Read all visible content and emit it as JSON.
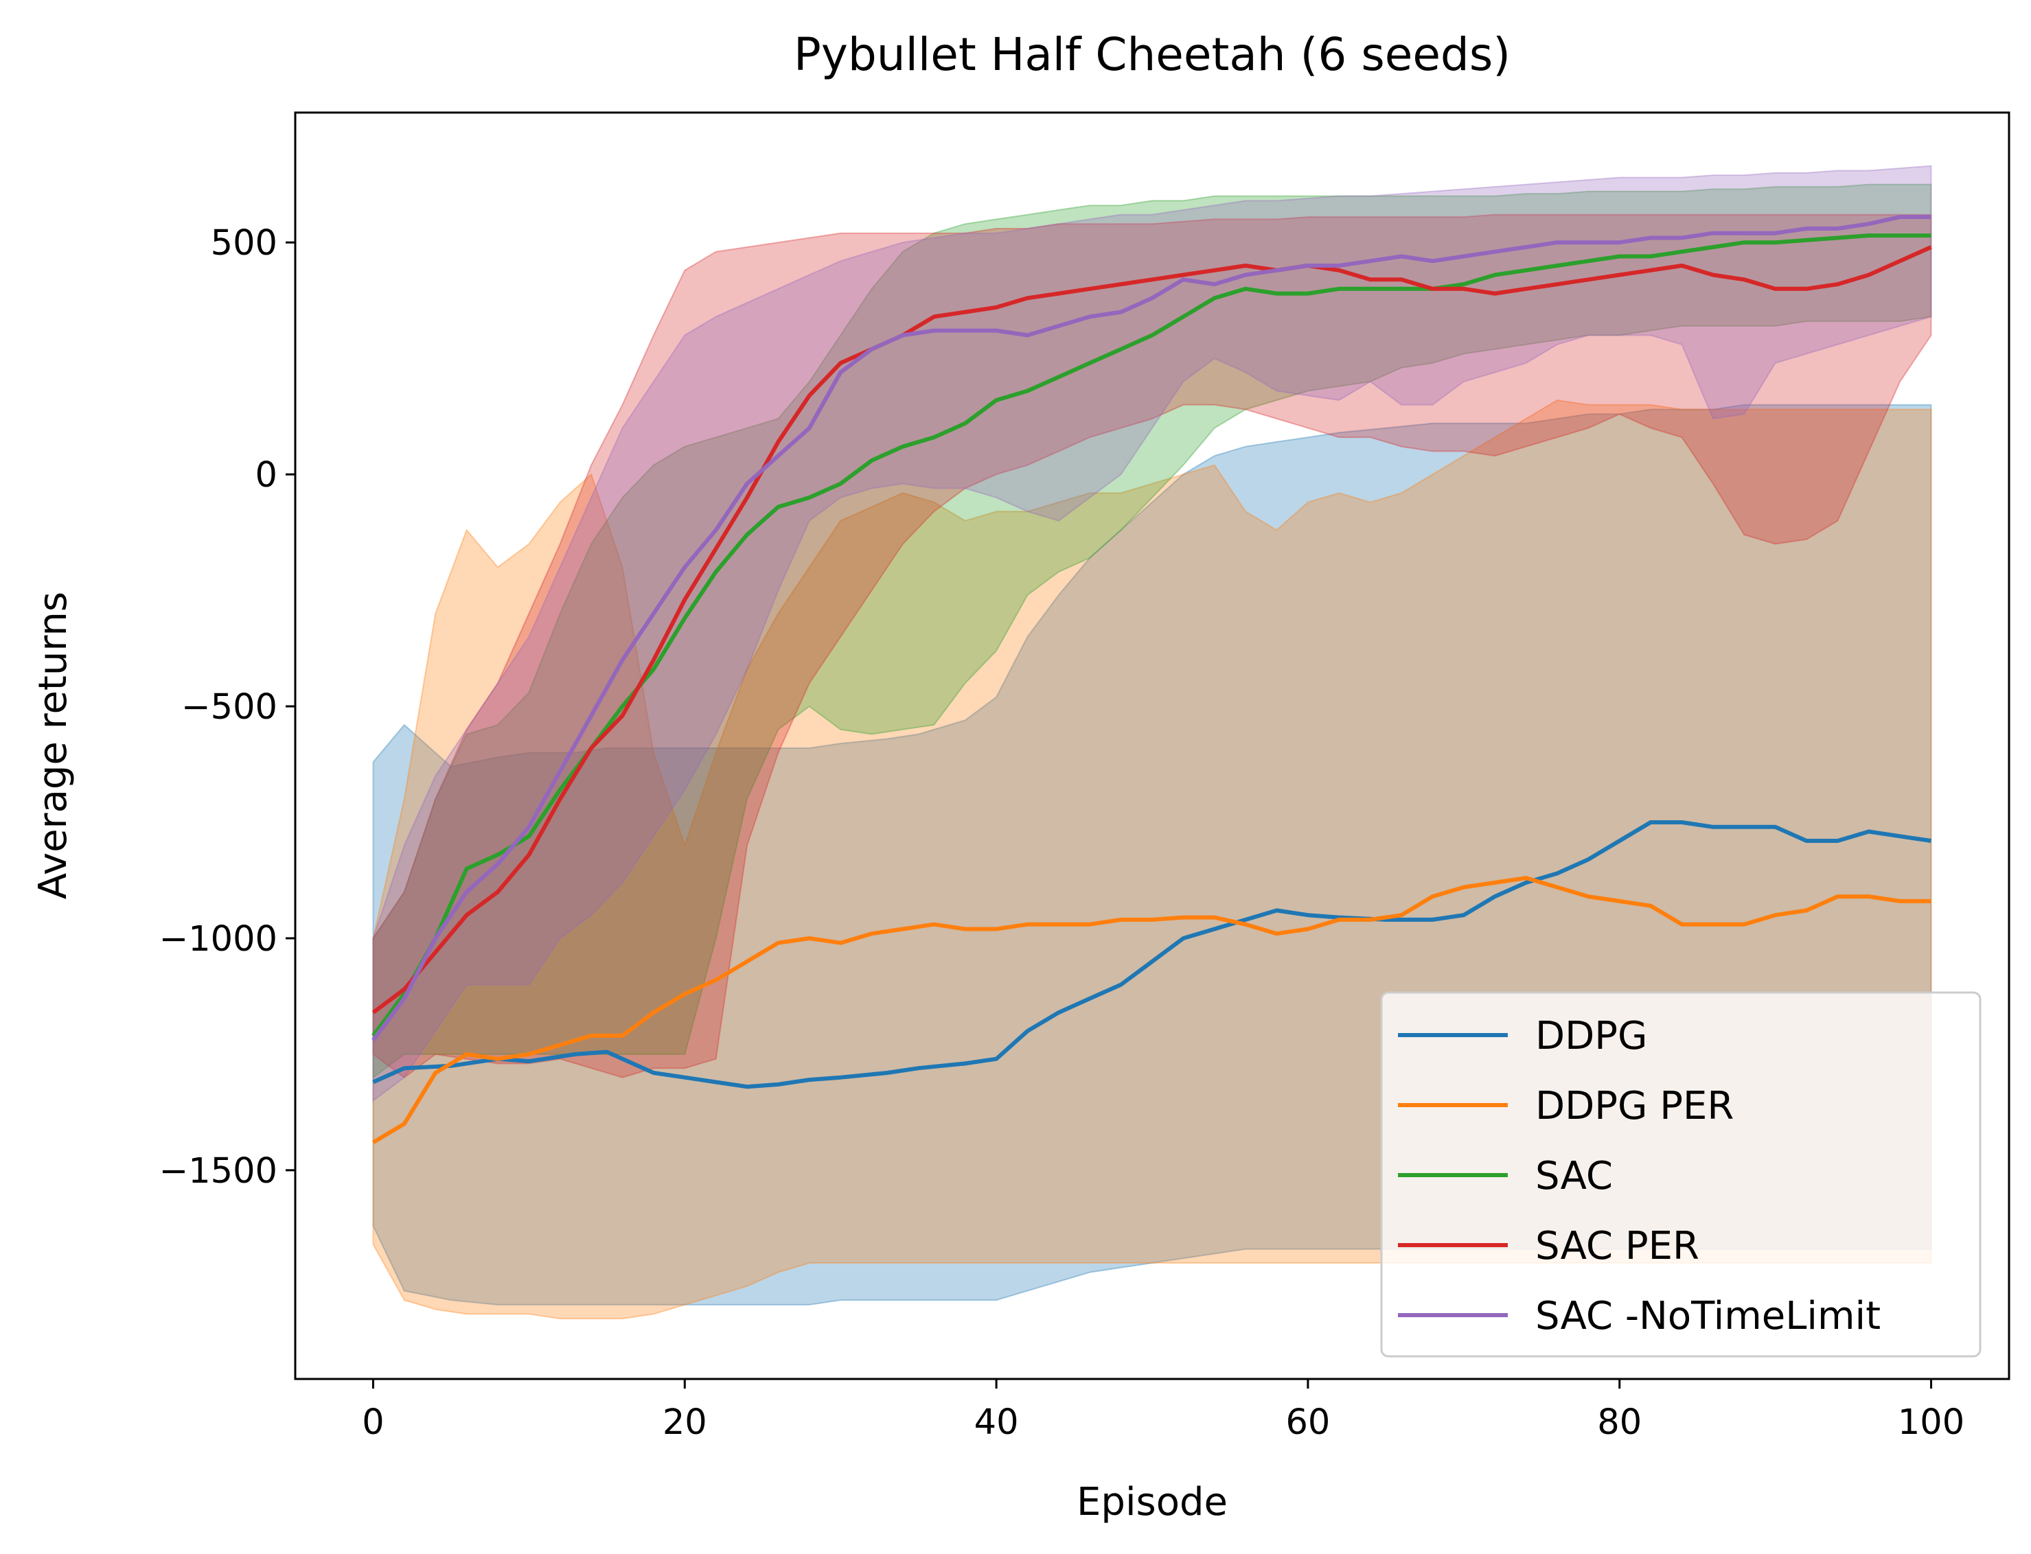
{
  "chart_data": {
    "type": "line",
    "title": "Pybullet Half Cheetah (6 seeds)",
    "xlabel": "Episode",
    "ylabel": "Average returns",
    "xlim": [
      -5,
      105
    ],
    "ylim": [
      -1950,
      780
    ],
    "xticks": [
      0,
      20,
      40,
      60,
      80,
      100
    ],
    "yticks": [
      500,
      0,
      -500,
      -1000,
      -1500
    ],
    "xtick_labels": [
      "0",
      "20",
      "40",
      "60",
      "80",
      "100"
    ],
    "ytick_labels": [
      "500",
      "0",
      "−500",
      "−1000",
      "−1500"
    ],
    "grid": false,
    "legend_position": "lower right",
    "series": [
      {
        "name": "DDPG",
        "color": "#1f77b4",
        "x": [
          0,
          2,
          5,
          8,
          10,
          13,
          15,
          18,
          20,
          22,
          24,
          26,
          28,
          30,
          33,
          35,
          38,
          40,
          42,
          44,
          46,
          48,
          50,
          52,
          54,
          56,
          58,
          60,
          62,
          65,
          68,
          70,
          72,
          74,
          76,
          78,
          80,
          82,
          84,
          86,
          88,
          90,
          92,
          94,
          96,
          98,
          100
        ],
        "mean": [
          -1310,
          -1280,
          -1275,
          -1260,
          -1265,
          -1250,
          -1245,
          -1290,
          -1300,
          -1310,
          -1320,
          -1315,
          -1305,
          -1300,
          -1290,
          -1280,
          -1270,
          -1260,
          -1200,
          -1160,
          -1130,
          -1100,
          -1050,
          -1000,
          -980,
          -960,
          -940,
          -950,
          -955,
          -960,
          -960,
          -950,
          -910,
          -880,
          -860,
          -830,
          -790,
          -750,
          -750,
          -760,
          -760,
          -760,
          -790,
          -790,
          -770,
          -780,
          -790
        ],
        "lower": [
          -1620,
          -1760,
          -1780,
          -1790,
          -1790,
          -1790,
          -1790,
          -1790,
          -1790,
          -1790,
          -1790,
          -1790,
          -1790,
          -1780,
          -1780,
          -1780,
          -1780,
          -1780,
          -1760,
          -1740,
          -1720,
          -1710,
          -1700,
          -1690,
          -1680,
          -1670,
          -1670,
          -1670,
          -1670,
          -1670,
          -1670,
          -1670,
          -1670,
          -1670,
          -1670,
          -1670,
          -1670,
          -1670,
          -1670,
          -1670,
          -1670,
          -1670,
          -1670,
          -1670,
          -1670,
          -1670,
          -1670
        ],
        "upper": [
          -620,
          -540,
          -630,
          -610,
          -600,
          -600,
          -590,
          -590,
          -590,
          -590,
          -590,
          -590,
          -590,
          -580,
          -570,
          -560,
          -530,
          -480,
          -350,
          -260,
          -180,
          -120,
          -60,
          0,
          40,
          60,
          70,
          80,
          90,
          100,
          110,
          110,
          110,
          110,
          120,
          130,
          130,
          140,
          140,
          140,
          150,
          150,
          150,
          150,
          150,
          150,
          150
        ]
      },
      {
        "name": "DDPG PER",
        "color": "#ff7f0e",
        "x": [
          0,
          2,
          4,
          6,
          8,
          10,
          12,
          14,
          16,
          18,
          20,
          22,
          24,
          26,
          28,
          30,
          32,
          34,
          36,
          38,
          40,
          42,
          44,
          46,
          48,
          50,
          52,
          54,
          56,
          58,
          60,
          62,
          64,
          66,
          68,
          70,
          72,
          74,
          76,
          78,
          80,
          82,
          84,
          86,
          88,
          90,
          92,
          94,
          96,
          98,
          100
        ],
        "mean": [
          -1440,
          -1400,
          -1290,
          -1250,
          -1260,
          -1250,
          -1230,
          -1210,
          -1210,
          -1160,
          -1120,
          -1090,
          -1050,
          -1010,
          -1000,
          -1010,
          -990,
          -980,
          -970,
          -980,
          -980,
          -970,
          -970,
          -970,
          -960,
          -960,
          -955,
          -955,
          -970,
          -990,
          -980,
          -960,
          -960,
          -950,
          -910,
          -890,
          -880,
          -870,
          -890,
          -910,
          -920,
          -930,
          -970,
          -970,
          -970,
          -950,
          -940,
          -910,
          -910,
          -920,
          -920
        ],
        "lower": [
          -1660,
          -1780,
          -1800,
          -1810,
          -1810,
          -1810,
          -1820,
          -1820,
          -1820,
          -1810,
          -1790,
          -1770,
          -1750,
          -1720,
          -1700,
          -1700,
          -1700,
          -1700,
          -1700,
          -1700,
          -1700,
          -1700,
          -1700,
          -1700,
          -1700,
          -1700,
          -1700,
          -1700,
          -1700,
          -1700,
          -1700,
          -1700,
          -1700,
          -1700,
          -1700,
          -1700,
          -1700,
          -1700,
          -1700,
          -1700,
          -1700,
          -1700,
          -1700,
          -1700,
          -1700,
          -1700,
          -1700,
          -1700,
          -1700,
          -1700,
          -1700
        ],
        "upper": [
          -1000,
          -700,
          -300,
          -120,
          -200,
          -150,
          -60,
          0,
          -200,
          -600,
          -800,
          -600,
          -420,
          -300,
          -200,
          -100,
          -70,
          -40,
          -60,
          -100,
          -80,
          -80,
          -60,
          -40,
          -40,
          -20,
          0,
          20,
          -80,
          -120,
          -60,
          -40,
          -60,
          -40,
          0,
          40,
          80,
          120,
          160,
          150,
          150,
          150,
          140,
          140,
          140,
          140,
          140,
          140,
          140,
          140,
          140
        ]
      },
      {
        "name": "SAC",
        "color": "#2ca02c",
        "x": [
          0,
          2,
          4,
          6,
          8,
          10,
          12,
          14,
          16,
          18,
          20,
          22,
          24,
          26,
          28,
          30,
          32,
          34,
          36,
          38,
          40,
          42,
          44,
          46,
          48,
          50,
          52,
          54,
          56,
          58,
          60,
          62,
          64,
          66,
          68,
          70,
          72,
          74,
          76,
          78,
          80,
          82,
          84,
          86,
          88,
          90,
          92,
          94,
          96,
          98,
          100
        ],
        "mean": [
          -1210,
          -1120,
          -1000,
          -850,
          -820,
          -780,
          -680,
          -590,
          -500,
          -420,
          -310,
          -210,
          -130,
          -70,
          -50,
          -20,
          30,
          60,
          80,
          110,
          160,
          180,
          210,
          240,
          270,
          300,
          340,
          380,
          400,
          390,
          390,
          400,
          400,
          400,
          400,
          410,
          430,
          440,
          450,
          460,
          470,
          470,
          480,
          490,
          500,
          500,
          505,
          510,
          515,
          515,
          515
        ],
        "lower": [
          -1300,
          -1250,
          -1250,
          -1250,
          -1250,
          -1250,
          -1250,
          -1250,
          -1250,
          -1250,
          -1250,
          -1000,
          -700,
          -550,
          -500,
          -550,
          -560,
          -550,
          -540,
          -450,
          -380,
          -260,
          -210,
          -180,
          -120,
          -50,
          20,
          100,
          140,
          160,
          180,
          190,
          200,
          230,
          240,
          260,
          270,
          280,
          290,
          300,
          300,
          310,
          320,
          320,
          320,
          320,
          330,
          330,
          330,
          330,
          340
        ],
        "upper": [
          -1000,
          -900,
          -700,
          -560,
          -540,
          -470,
          -300,
          -150,
          -50,
          20,
          60,
          80,
          100,
          120,
          200,
          300,
          400,
          480,
          520,
          540,
          550,
          560,
          570,
          580,
          580,
          590,
          590,
          600,
          600,
          600,
          600,
          600,
          600,
          600,
          600,
          600,
          600,
          605,
          605,
          610,
          610,
          610,
          610,
          615,
          615,
          620,
          620,
          620,
          625,
          625,
          625
        ]
      },
      {
        "name": "SAC PER",
        "color": "#d62728",
        "x": [
          0,
          2,
          4,
          6,
          8,
          10,
          12,
          14,
          16,
          18,
          20,
          22,
          24,
          26,
          28,
          30,
          32,
          34,
          36,
          38,
          40,
          42,
          44,
          46,
          48,
          50,
          52,
          54,
          56,
          58,
          60,
          62,
          64,
          66,
          68,
          70,
          72,
          74,
          76,
          78,
          80,
          82,
          84,
          86,
          88,
          90,
          92,
          94,
          96,
          98,
          100
        ],
        "mean": [
          -1160,
          -1110,
          -1030,
          -950,
          -900,
          -820,
          -700,
          -590,
          -520,
          -400,
          -270,
          -160,
          -50,
          70,
          170,
          240,
          270,
          300,
          340,
          350,
          360,
          380,
          390,
          400,
          410,
          420,
          430,
          440,
          450,
          440,
          450,
          440,
          420,
          420,
          400,
          400,
          390,
          400,
          410,
          420,
          430,
          440,
          450,
          430,
          420,
          400,
          400,
          410,
          430,
          460,
          490
        ],
        "lower": [
          -1250,
          -1300,
          -1250,
          -1260,
          -1270,
          -1270,
          -1260,
          -1280,
          -1300,
          -1280,
          -1280,
          -1260,
          -800,
          -600,
          -450,
          -350,
          -250,
          -150,
          -80,
          -30,
          0,
          20,
          50,
          80,
          100,
          120,
          150,
          150,
          140,
          120,
          100,
          80,
          80,
          60,
          50,
          50,
          40,
          60,
          80,
          100,
          130,
          100,
          80,
          -20,
          -130,
          -150,
          -140,
          -100,
          50,
          200,
          300
        ],
        "upper": [
          -1000,
          -900,
          -700,
          -550,
          -450,
          -300,
          -150,
          20,
          150,
          300,
          440,
          480,
          490,
          500,
          510,
          520,
          520,
          520,
          520,
          520,
          530,
          530,
          540,
          540,
          540,
          540,
          545,
          550,
          550,
          550,
          555,
          555,
          555,
          555,
          555,
          555,
          560,
          560,
          560,
          560,
          560,
          560,
          560,
          560,
          560,
          560,
          560,
          560,
          560,
          560,
          560
        ]
      },
      {
        "name": "SAC -NoTimeLimit",
        "color": "#9467bd",
        "x": [
          0,
          2,
          4,
          6,
          8,
          10,
          12,
          14,
          16,
          18,
          20,
          22,
          24,
          26,
          28,
          30,
          32,
          34,
          36,
          38,
          40,
          42,
          44,
          46,
          48,
          50,
          52,
          54,
          56,
          58,
          60,
          62,
          64,
          66,
          68,
          70,
          72,
          74,
          76,
          78,
          80,
          82,
          84,
          86,
          88,
          90,
          92,
          94,
          96,
          98,
          100
        ],
        "mean": [
          -1220,
          -1130,
          -1000,
          -900,
          -840,
          -760,
          -640,
          -520,
          -400,
          -300,
          -200,
          -120,
          -20,
          40,
          100,
          220,
          270,
          300,
          310,
          310,
          310,
          300,
          320,
          340,
          350,
          380,
          420,
          410,
          430,
          440,
          450,
          450,
          460,
          470,
          460,
          470,
          480,
          490,
          500,
          500,
          500,
          510,
          510,
          520,
          520,
          520,
          530,
          530,
          540,
          555,
          555
        ],
        "lower": [
          -1350,
          -1300,
          -1200,
          -1100,
          -1100,
          -1100,
          -1000,
          -950,
          -880,
          -780,
          -680,
          -560,
          -420,
          -250,
          -100,
          -50,
          -30,
          -20,
          -30,
          -30,
          -50,
          -80,
          -100,
          -50,
          0,
          100,
          200,
          250,
          220,
          180,
          170,
          160,
          200,
          150,
          150,
          200,
          220,
          240,
          280,
          300,
          300,
          300,
          280,
          120,
          130,
          240,
          260,
          280,
          300,
          320,
          340
        ],
        "upper": [
          -1000,
          -800,
          -650,
          -550,
          -450,
          -350,
          -200,
          -50,
          100,
          200,
          300,
          340,
          370,
          400,
          430,
          460,
          480,
          500,
          510,
          520,
          520,
          530,
          540,
          550,
          560,
          560,
          570,
          580,
          590,
          590,
          595,
          600,
          600,
          605,
          610,
          615,
          620,
          625,
          630,
          635,
          640,
          640,
          640,
          645,
          645,
          650,
          650,
          655,
          655,
          660,
          665
        ]
      }
    ]
  }
}
